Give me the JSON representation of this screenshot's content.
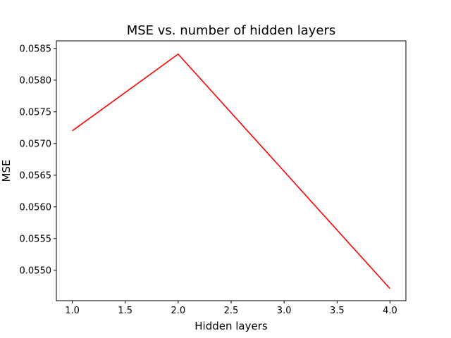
{
  "chart_data": {
    "type": "line",
    "title": "MSE vs. number of hidden layers",
    "xlabel": "Hidden layers",
    "ylabel": "MSE",
    "xlim": [
      0.85,
      4.15
    ],
    "ylim": [
      0.05452,
      0.05862
    ],
    "xticks": [
      1.0,
      1.5,
      2.0,
      2.5,
      3.0,
      3.5,
      4.0
    ],
    "xtick_labels": [
      "1.0",
      "1.5",
      "2.0",
      "2.5",
      "3.0",
      "3.5",
      "4.0"
    ],
    "yticks": [
      0.055,
      0.0555,
      0.056,
      0.0565,
      0.057,
      0.0575,
      0.058,
      0.0585
    ],
    "ytick_labels": [
      "0.0550",
      "0.0555",
      "0.0560",
      "0.0565",
      "0.0570",
      "0.0575",
      "0.0580",
      "0.0585"
    ],
    "grid": false,
    "series": [
      {
        "x": [
          1,
          2,
          3,
          4
        ],
        "y": [
          0.0572,
          0.05841,
          0.05656,
          0.05471
        ],
        "color": "#ff0000"
      }
    ]
  }
}
